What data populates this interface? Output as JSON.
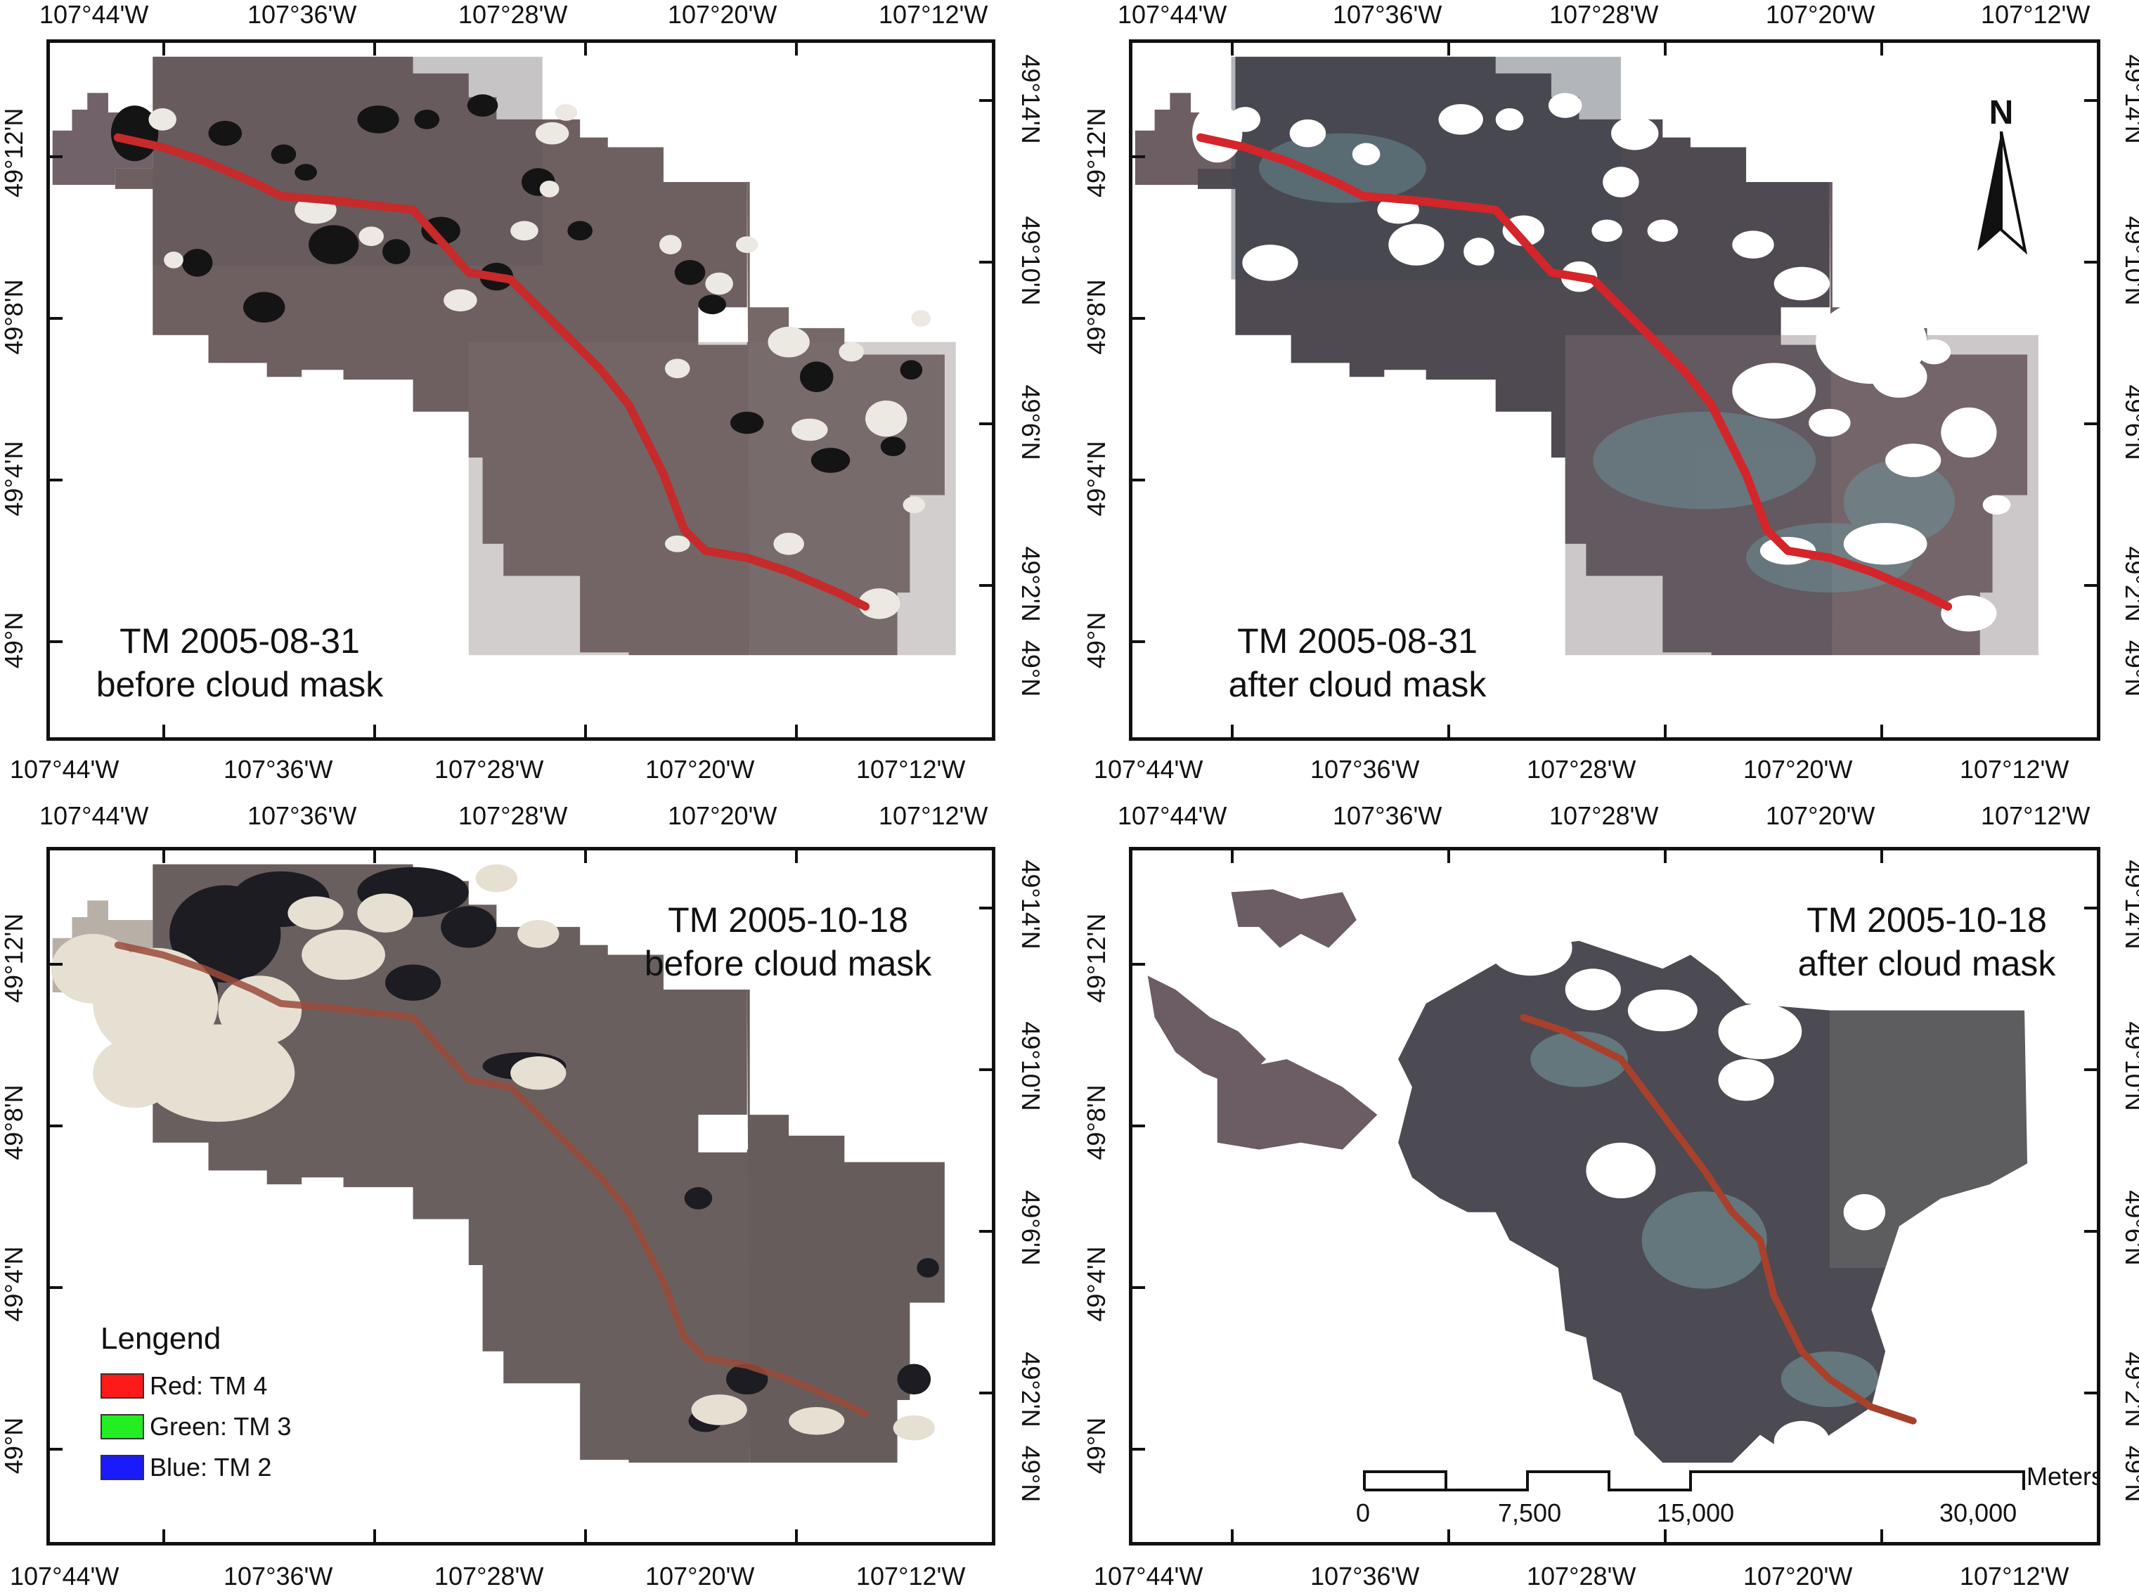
{
  "axes": {
    "longitude_ticks": [
      "107°44'W",
      "107°36'W",
      "107°28'W",
      "107°20'W",
      "107°12'W"
    ],
    "latitude_ticks_left": [
      "49°12'N",
      "49°8'N",
      "49°4'N",
      "49°N"
    ],
    "latitude_ticks_right": [
      "49°14'N",
      "49°10'N",
      "49°6'N",
      "49°2'N",
      "49°N"
    ]
  },
  "panels": [
    {
      "id": "tl",
      "title_line1": "TM 2005-08-31",
      "title_line2": "before cloud mask"
    },
    {
      "id": "tr",
      "title_line1": "TM 2005-08-31",
      "title_line2": "after cloud mask"
    },
    {
      "id": "bl",
      "title_line1": "TM 2005-10-18",
      "title_line2": "before cloud mask"
    },
    {
      "id": "br",
      "title_line1": "TM 2005-10-18",
      "title_line2": "after cloud mask"
    }
  ],
  "legend": {
    "heading": "Lengend",
    "items": [
      {
        "label": "Red: TM 4",
        "color": "#ff1a1a"
      },
      {
        "label": "Green: TM 3",
        "color": "#22ee22"
      },
      {
        "label": "Blue: TM 2",
        "color": "#1a1aff"
      }
    ]
  },
  "north_arrow": {
    "label": "N"
  },
  "scale_bar": {
    "labels": [
      "0",
      "7,500",
      "15,000",
      "30,000"
    ],
    "unit": "Meters"
  },
  "colors": {
    "terrain": "#6e5f60",
    "terrain_dark": "#4b4345",
    "river": "#c62a2a",
    "cloud": "#e9e6df",
    "shadow": "#151515",
    "masked": "#ffffff"
  }
}
